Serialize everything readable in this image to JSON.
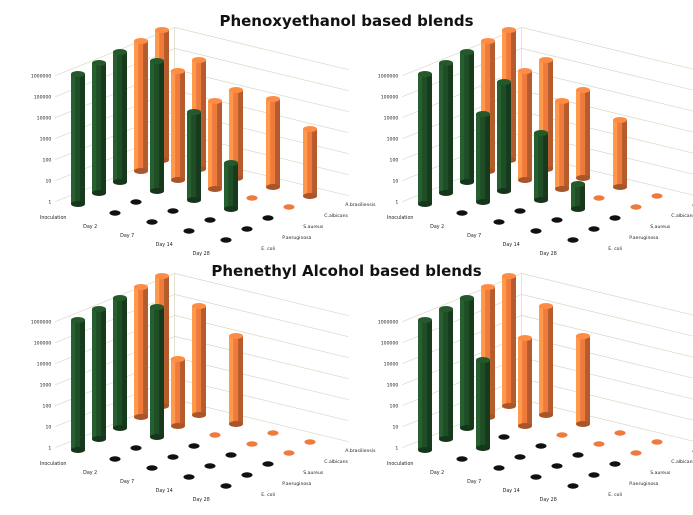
{
  "sections": [
    {
      "title": "Phenoxyethanol based blends"
    },
    {
      "title": "Phenethyl Alcohol based blends"
    }
  ],
  "colors": {
    "dark_bar": "#1f4d26",
    "orange_bar": "#f07a3c",
    "floor_marker": "#111111",
    "grid": "#d9d9c4"
  },
  "chart_data": [
    {
      "type": "bar",
      "title": "",
      "categories": [
        "Inoculation",
        "Day 2",
        "Day 7",
        "Day 14",
        "Day 28"
      ],
      "y_ticks": [
        "1",
        "10",
        "100",
        "1000",
        "10000",
        "100000",
        "1000000"
      ],
      "ylim": [
        1,
        1000000
      ],
      "log_scale": true,
      "series": [
        {
          "name": "E. coli",
          "color": "#1f4d26",
          "values": [
            1000000,
            0,
            0,
            0,
            0
          ]
        },
        {
          "name": "P.aeruginosa",
          "color": "#1f4d26",
          "values": [
            1000000,
            0,
            0,
            0,
            0
          ]
        },
        {
          "name": "S.aureus",
          "color": "#1f4d26",
          "values": [
            1000000,
            1000000,
            10000,
            100,
            0
          ]
        },
        {
          "name": "C.albicans",
          "color": "#f07a3c",
          "values": [
            1000000,
            100000,
            10000,
            0,
            0
          ]
        },
        {
          "name": "A.brasiliensis",
          "color": "#f07a3c",
          "values": [
            1000000,
            100000,
            10000,
            10000,
            1000
          ]
        }
      ]
    },
    {
      "type": "bar",
      "title": "",
      "categories": [
        "Inoculation",
        "Day 2",
        "Day 7",
        "Day 14",
        "Day 28"
      ],
      "y_ticks": [
        "1",
        "10",
        "100",
        "1000",
        "10000",
        "100000",
        "1000000"
      ],
      "ylim": [
        1,
        1000000
      ],
      "log_scale": true,
      "series": [
        {
          "name": "E. coli",
          "color": "#1f4d26",
          "values": [
            1000000,
            0,
            0,
            0,
            0
          ]
        },
        {
          "name": "P.aeruginosa",
          "color": "#1f4d26",
          "values": [
            1000000,
            10000,
            0,
            0,
            0
          ]
        },
        {
          "name": "S.aureus",
          "color": "#1f4d26",
          "values": [
            1000000,
            100000,
            1000,
            10,
            0
          ]
        },
        {
          "name": "C.albicans",
          "color": "#f07a3c",
          "values": [
            1000000,
            100000,
            10000,
            0,
            0
          ]
        },
        {
          "name": "A.brasiliensis",
          "color": "#f07a3c",
          "values": [
            1000000,
            100000,
            10000,
            1000,
            0
          ]
        }
      ]
    },
    {
      "type": "bar",
      "title": "",
      "categories": [
        "Inoculation",
        "Day 2",
        "Day 7",
        "Day 14",
        "Day 28"
      ],
      "y_ticks": [
        "1",
        "10",
        "100",
        "1000",
        "10000",
        "100000",
        "1000000"
      ],
      "ylim": [
        1,
        1000000
      ],
      "log_scale": true,
      "series": [
        {
          "name": "E. coli",
          "color": "#1f4d26",
          "values": [
            1000000,
            0,
            0,
            0,
            0
          ]
        },
        {
          "name": "P.aeruginosa",
          "color": "#1f4d26",
          "values": [
            1000000,
            0,
            0,
            0,
            0
          ]
        },
        {
          "name": "S.aureus",
          "color": "#1f4d26",
          "values": [
            1000000,
            1000000,
            0,
            0,
            0
          ]
        },
        {
          "name": "C.albicans",
          "color": "#f07a3c",
          "values": [
            1000000,
            1000,
            0,
            0,
            0
          ]
        },
        {
          "name": "A.brasiliensis",
          "color": "#f07a3c",
          "values": [
            1000000,
            100000,
            10000,
            0,
            0
          ]
        }
      ]
    },
    {
      "type": "bar",
      "title": "",
      "categories": [
        "Inoculation",
        "Day 2",
        "Day 7",
        "Day 14",
        "Day 28"
      ],
      "y_ticks": [
        "1",
        "10",
        "100",
        "1000",
        "10000",
        "100000",
        "1000000"
      ],
      "ylim": [
        1,
        1000000
      ],
      "log_scale": true,
      "series": [
        {
          "name": "E. coli",
          "color": "#1f4d26",
          "values": [
            1000000,
            0,
            0,
            0,
            0
          ]
        },
        {
          "name": "P.aeruginosa",
          "color": "#1f4d26",
          "values": [
            1000000,
            10000,
            0,
            0,
            0
          ]
        },
        {
          "name": "S.aureus",
          "color": "#1f4d26",
          "values": [
            1000000,
            0,
            0,
            0,
            0
          ]
        },
        {
          "name": "C.albicans",
          "color": "#f07a3c",
          "values": [
            1000000,
            10000,
            0,
            0,
            0
          ]
        },
        {
          "name": "A.brasiliensis",
          "color": "#f07a3c",
          "values": [
            1000000,
            100000,
            10000,
            0,
            0
          ]
        }
      ]
    }
  ]
}
